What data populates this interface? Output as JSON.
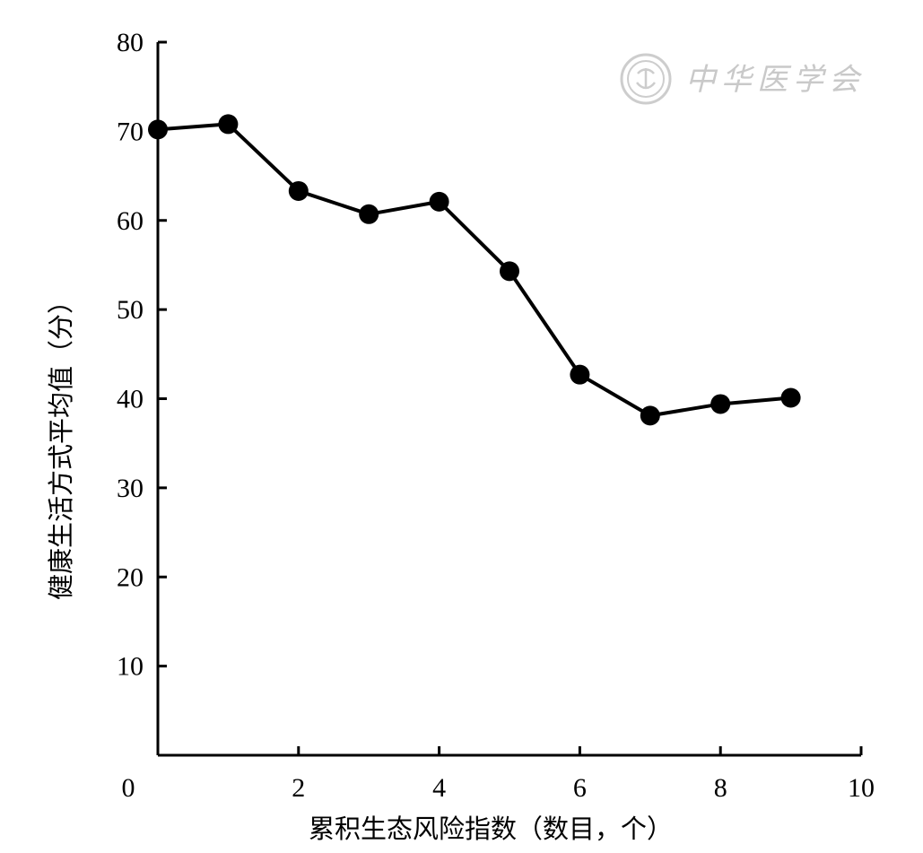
{
  "chart_data": {
    "type": "line",
    "xlabel": "累积生态风险指数（数目，个）",
    "ylabel": "健康生活方式平均值（分）",
    "xlim": [
      0,
      10
    ],
    "ylim": [
      0,
      80
    ],
    "x_ticks": [
      "0",
      "2",
      "4",
      "6",
      "8",
      "10"
    ],
    "y_ticks": [
      "10",
      "20",
      "30",
      "40",
      "50",
      "60",
      "70",
      "80"
    ],
    "x": [
      0,
      1,
      2,
      3,
      4,
      5,
      6,
      7,
      8,
      9
    ],
    "series": [
      {
        "values": [
          70.2,
          70.8,
          63.3,
          60.7,
          62.1,
          54.3,
          42.7,
          38.1,
          39.4,
          40.1
        ]
      }
    ],
    "grid": false,
    "line_color": "#000000",
    "marker": "filled-circle"
  },
  "watermark": {
    "text": "中华医学会",
    "color": "#c9c9c9"
  }
}
